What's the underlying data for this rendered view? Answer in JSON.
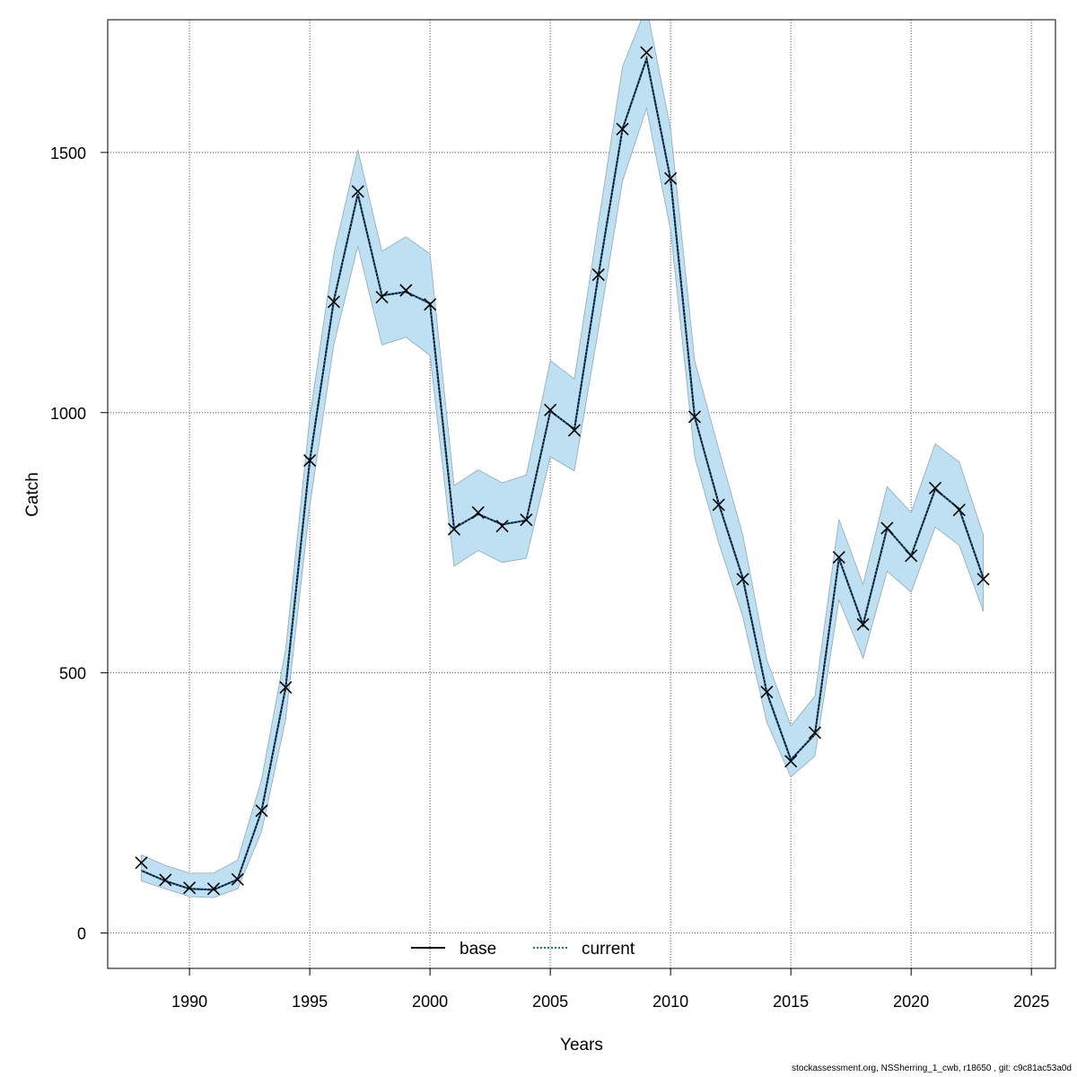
{
  "chart_data": {
    "type": "line",
    "title": "",
    "xlabel": "Years",
    "ylabel": "Catch",
    "xlim": [
      1986.6,
      2026.0
    ],
    "ylim": [
      -68,
      1755
    ],
    "x_ticks": [
      1990,
      1995,
      2000,
      2005,
      2010,
      2015,
      2020,
      2025
    ],
    "y_ticks": [
      0,
      500,
      1000,
      1500
    ],
    "grid": true,
    "legend_position": "bottom-center",
    "colors": {
      "band": "#bfe0f2",
      "band_edge": "#8fa8b8",
      "base": "#000000",
      "current": "#1a6aa0",
      "grid": "#555555"
    },
    "x": [
      1988,
      1989,
      1990,
      1991,
      1992,
      1993,
      1994,
      1995,
      1996,
      1997,
      1998,
      1999,
      2000,
      2001,
      2002,
      2003,
      2004,
      2005,
      2006,
      2007,
      2008,
      2009,
      2010,
      2011,
      2012,
      2013,
      2014,
      2015,
      2016,
      2017,
      2018,
      2019,
      2020,
      2021,
      2022,
      2023
    ],
    "series": [
      {
        "name": "base",
        "style": "solid",
        "values": [
          120,
          100,
          85,
          83,
          103,
          235,
          472,
          907,
          1215,
          1420,
          1225,
          1232,
          1210,
          778,
          805,
          785,
          793,
          1003,
          968,
          1265,
          1545,
          1680,
          1448,
          992,
          825,
          682,
          462,
          333,
          382,
          720,
          592,
          778,
          725,
          853,
          815,
          682
        ]
      },
      {
        "name": "current",
        "style": "dotted",
        "values": [
          120,
          100,
          85,
          83,
          103,
          235,
          472,
          907,
          1215,
          1420,
          1225,
          1232,
          1210,
          778,
          805,
          785,
          793,
          1003,
          968,
          1265,
          1545,
          1680,
          1448,
          992,
          825,
          682,
          462,
          333,
          382,
          720,
          592,
          778,
          725,
          853,
          815,
          682
        ]
      },
      {
        "name": "",
        "style": "x-markers",
        "values": [
          135,
          102,
          87,
          85,
          103,
          235,
          472,
          908,
          1213,
          1425,
          1222,
          1235,
          1208,
          776,
          808,
          782,
          794,
          1005,
          966,
          1265,
          1545,
          1692,
          1450,
          992,
          823,
          680,
          463,
          330,
          385,
          722,
          593,
          778,
          725,
          855,
          813,
          680
        ]
      }
    ],
    "band_upper": [
      150,
      130,
      115,
      115,
      140,
      295,
      545,
      990,
      1305,
      1505,
      1310,
      1338,
      1305,
      860,
      890,
      865,
      880,
      1100,
      1065,
      1365,
      1665,
      1780,
      1545,
      1100,
      930,
      765,
      525,
      398,
      455,
      795,
      670,
      858,
      808,
      940,
      905,
      765
    ],
    "band_lower": [
      100,
      85,
      70,
      68,
      85,
      195,
      410,
      820,
      1130,
      1320,
      1130,
      1145,
      1110,
      705,
      735,
      712,
      720,
      915,
      888,
      1160,
      1445,
      1585,
      1350,
      915,
      750,
      608,
      405,
      300,
      340,
      640,
      528,
      695,
      655,
      780,
      745,
      618
    ]
  },
  "footer_text": "stockassessment.org, NSSherring_1_cwb, r18650 , git: c9c81ac53a0d"
}
